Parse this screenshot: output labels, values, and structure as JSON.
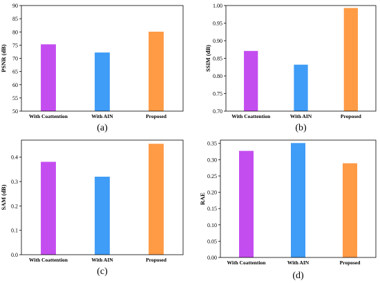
{
  "colors": {
    "with_coattention": "#c44df0",
    "with_ain": "#3f9cf7",
    "proposed": "#ff9a45"
  },
  "chart_data": [
    {
      "type": "bar",
      "caption": "(a)",
      "ylabel": "PSNR (dB)",
      "categories": [
        "With Coattention",
        "With AIN",
        "Proposed"
      ],
      "values": [
        75.3,
        72.2,
        80.1
      ],
      "ylim": [
        50,
        90
      ],
      "yticks": [
        "50",
        "55",
        "60",
        "65",
        "70",
        "75",
        "80",
        "85",
        "90"
      ],
      "grid": false
    },
    {
      "type": "bar",
      "caption": "(b)",
      "ylabel": "SSIM (dB)",
      "categories": [
        "With Coattention",
        "With AIN",
        "Proposed"
      ],
      "values": [
        0.871,
        0.832,
        0.993
      ],
      "ylim": [
        0.7,
        1.0
      ],
      "yticks": [
        "0.70",
        "0.75",
        "0.80",
        "0.85",
        "0.90",
        "0.95",
        "1.00"
      ],
      "grid": false
    },
    {
      "type": "bar",
      "caption": "(c)",
      "ylabel": "SAM (dB)",
      "categories": [
        "With Coattention",
        "With AIN",
        "Proposed"
      ],
      "values": [
        0.381,
        0.32,
        0.455
      ],
      "ylim": [
        0.0,
        0.47
      ],
      "yticks": [
        "0.0",
        "0.1",
        "0.2",
        "0.3",
        "0.4"
      ],
      "grid": false
    },
    {
      "type": "bar",
      "caption": "(d)",
      "ylabel": "RAE",
      "categories": [
        "With Coattention",
        "With AIN",
        "Proposed"
      ],
      "values": [
        0.327,
        0.351,
        0.289
      ],
      "ylim": [
        0.0,
        0.36
      ],
      "yticks": [
        "0.00",
        "0.05",
        "0.10",
        "0.15",
        "0.20",
        "0.25",
        "0.30",
        "0.35"
      ],
      "grid": false
    }
  ]
}
